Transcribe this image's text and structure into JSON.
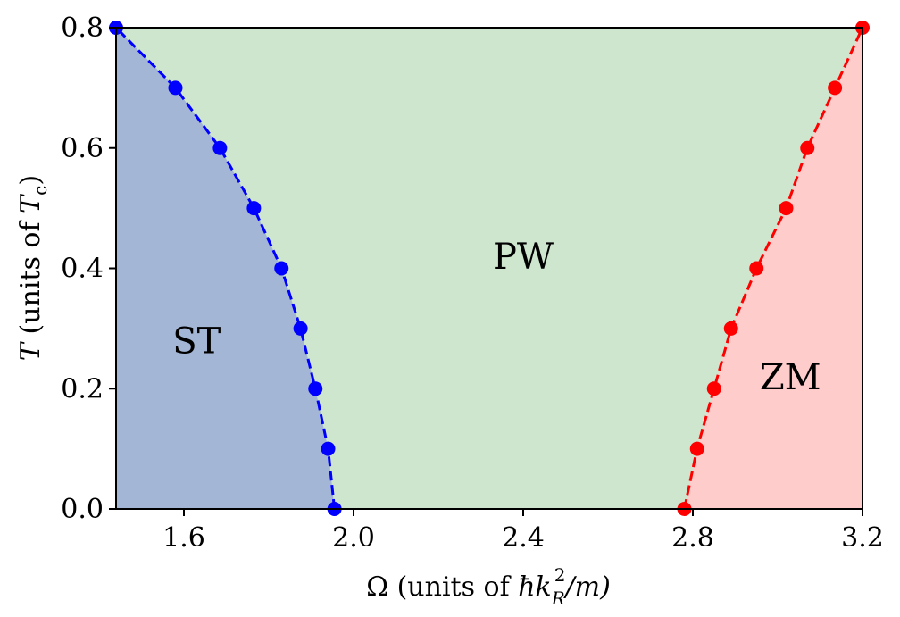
{
  "chart_data": {
    "type": "line",
    "title": "",
    "xlabel": {
      "prefix": "Ω (units of ",
      "symbol": "ħk",
      "sub": "R",
      "sup": "2",
      "suffix": "/m)"
    },
    "ylabel": {
      "symbol": "T",
      "middle": " (units of ",
      "symbol2": "T",
      "sub": "c",
      "suffix": ")"
    },
    "xlim": [
      1.44,
      3.2
    ],
    "ylim": [
      0.0,
      0.8
    ],
    "xticks": [
      "1.6",
      "2.0",
      "2.4",
      "2.8",
      "3.2"
    ],
    "xtick_values": [
      1.6,
      2.0,
      2.4,
      2.8,
      3.2
    ],
    "yticks": [
      "0.0",
      "0.2",
      "0.4",
      "0.6",
      "0.8"
    ],
    "ytick_values": [
      0.0,
      0.2,
      0.4,
      0.6,
      0.8
    ],
    "grid": false,
    "regions": [
      {
        "label": "ST",
        "color": "#a3b6d5",
        "at": [
          1.63,
          0.28
        ]
      },
      {
        "label": "PW",
        "color": "#cfe6ce",
        "at": [
          2.4,
          0.42
        ]
      },
      {
        "label": "ZM",
        "color": "#ffcccc",
        "at": [
          3.03,
          0.22
        ]
      }
    ],
    "series": [
      {
        "color": "#0000ff",
        "x": [
          1.955,
          1.94,
          1.91,
          1.875,
          1.83,
          1.765,
          1.685,
          1.58,
          1.44
        ],
        "y": [
          0.0,
          0.1,
          0.2,
          0.3,
          0.4,
          0.5,
          0.6,
          0.7,
          0.8
        ]
      },
      {
        "color": "#ff0000",
        "x": [
          2.78,
          2.81,
          2.85,
          2.89,
          2.95,
          3.02,
          3.07,
          3.135,
          3.2
        ],
        "y": [
          0.0,
          0.1,
          0.2,
          0.3,
          0.4,
          0.5,
          0.6,
          0.7,
          0.8
        ]
      }
    ]
  }
}
